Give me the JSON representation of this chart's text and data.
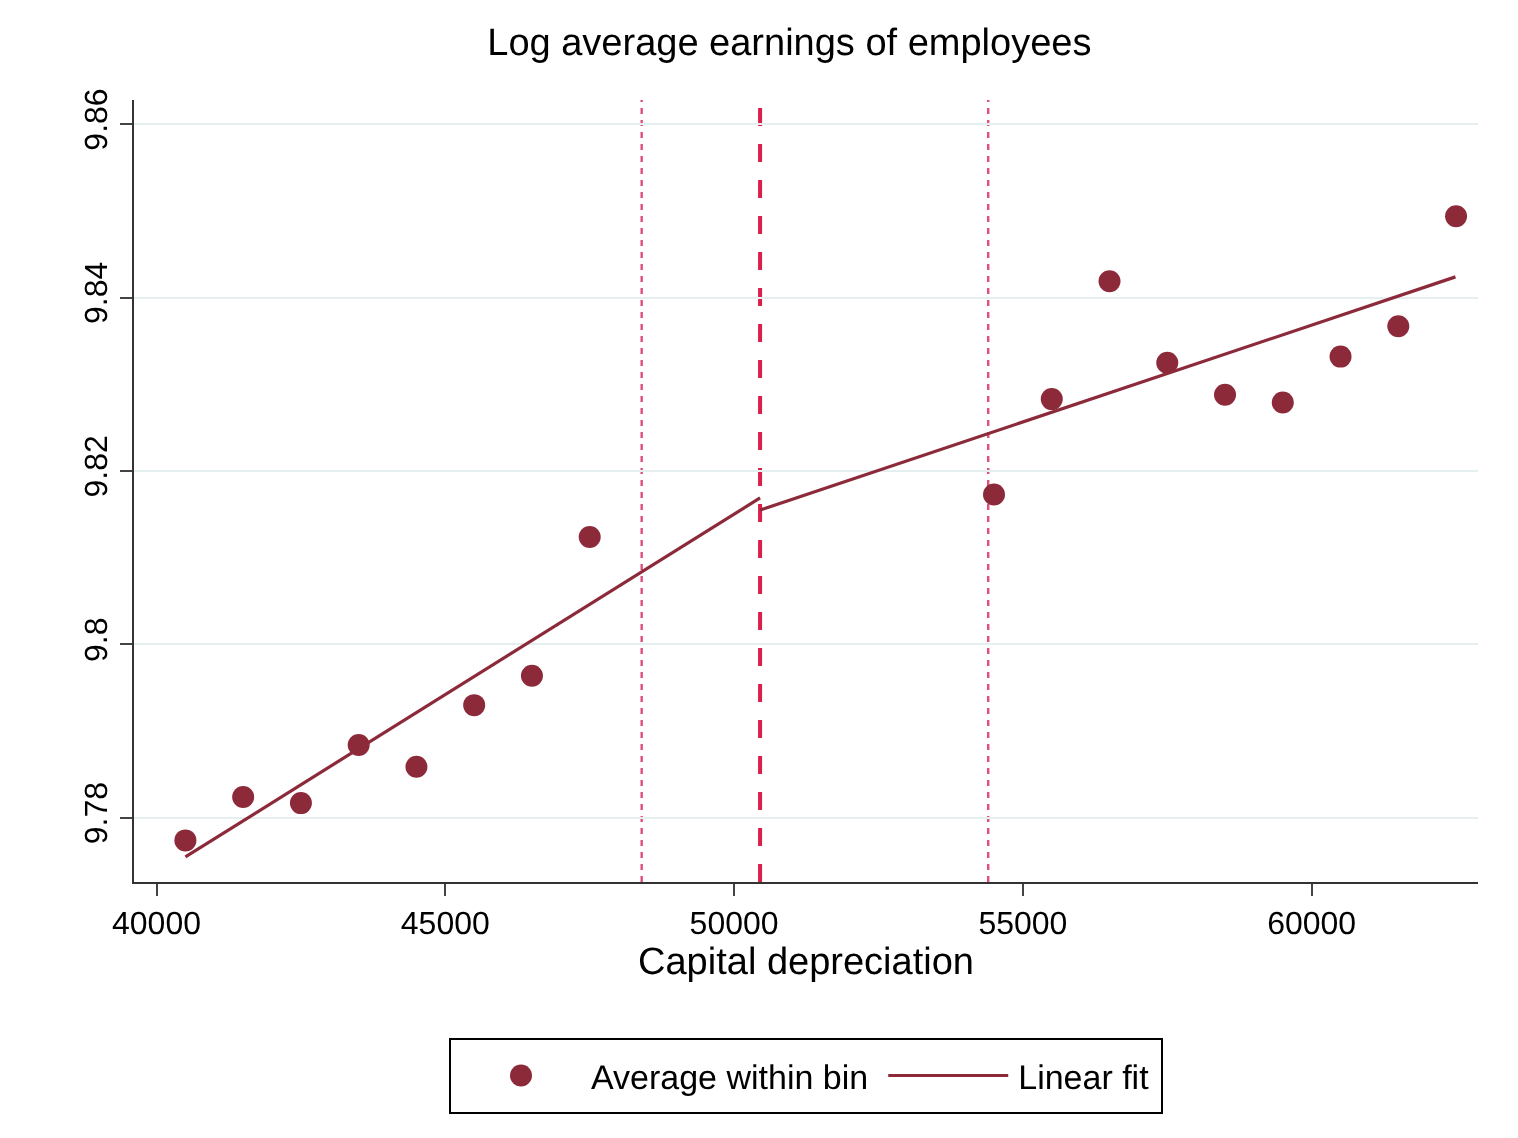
{
  "chart_data": {
    "type": "scatter",
    "title": "Log average earnings of employees",
    "xlabel": "Capital depreciation",
    "xlim": [
      39610,
      62880
    ],
    "xticks": [
      40000,
      45000,
      50000,
      55000,
      60000
    ],
    "ylim": [
      9.7726,
      9.8628
    ],
    "yticks": [
      9.78,
      9.8,
      9.82,
      9.84,
      9.86
    ],
    "grid": "y",
    "legend": "bottom",
    "series": [
      {
        "name": "Average within bin",
        "marker": "circle",
        "color": "#8c2a3a",
        "x": [
          40500,
          41500,
          42500,
          43500,
          44500,
          45500,
          46500,
          47500,
          54500,
          55500,
          56500,
          57500,
          58500,
          59500,
          60500,
          61500,
          62500
        ],
        "values": [
          9.7774,
          9.7824,
          9.7817,
          9.7884,
          9.7859,
          9.793,
          9.7964,
          9.8124,
          9.8173,
          9.8283,
          9.8419,
          9.8325,
          9.8288,
          9.8279,
          9.8332,
          9.8367,
          9.8494
        ]
      },
      {
        "name": "Linear fit",
        "type": "line",
        "color": "#8c2a3a",
        "line_style": "solid",
        "x": [
          40500,
          50450
        ],
        "values": [
          9.7755,
          9.8169
        ]
      },
      {
        "type": "line",
        "color": "#8c2a3a",
        "line_style": "solid",
        "x": [
          50450,
          62490
        ],
        "values": [
          9.8155,
          9.8424
        ]
      }
    ],
    "ref_lines": [
      {
        "axis": "x",
        "value": 48400,
        "color": "#e0507a",
        "line_style": "dotted"
      },
      {
        "axis": "x",
        "value": 50450,
        "color": "#dc1e4b",
        "line_style": "dashed"
      },
      {
        "axis": "x",
        "value": 54400,
        "color": "#e0507a",
        "line_style": "dotted"
      }
    ]
  }
}
